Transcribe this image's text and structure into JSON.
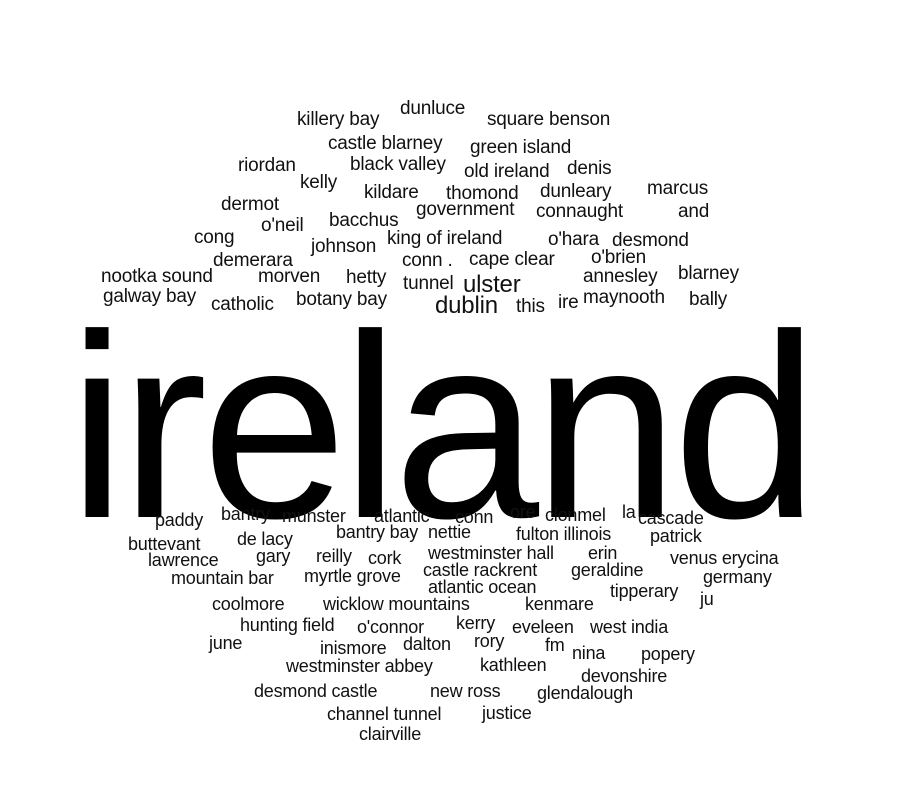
{
  "main_word": "ireland",
  "text_color": "#111111",
  "background": "#ffffff",
  "words": [
    "dunluce",
    "killery bay",
    "square benson",
    "castle blarney",
    "green island",
    "riordan",
    "black valley",
    "old ireland",
    "denis",
    "kelly",
    "kildare",
    "thomond",
    "dunleary",
    "marcus",
    "dermot",
    "government",
    "connaught",
    "and",
    "o'neil",
    "bacchus",
    "cong",
    "johnson",
    "king of ireland",
    "o'hara",
    "desmond",
    "demerara",
    "conn .",
    "cape clear",
    "o'brien",
    "nootka sound",
    "morven",
    "hetty",
    "tunnel",
    "ulster",
    "annesley",
    "blarney",
    "galway bay",
    "catholic",
    "botany bay",
    "dublin",
    "this",
    "ire",
    "maynooth",
    "bally",
    "bantry",
    "munster",
    "atlantic",
    "conn",
    "ore",
    "clonmel",
    "la",
    "cascade",
    "paddy",
    "bantry bay",
    "nettie",
    "fulton illinois",
    "patrick",
    "buttevant",
    "de lacy",
    "westminster hall",
    "erin",
    "lawrence",
    "gary",
    "reilly",
    "cork",
    "venus erycina",
    "castle rackrent",
    "geraldine",
    "mountain bar",
    "myrtle grove",
    "atlantic ocean",
    "germany",
    "tipperary",
    "ju",
    "coolmore",
    "wicklow mountains",
    "kenmare",
    "hunting field",
    "o'connor",
    "kerry",
    "eveleen",
    "west india",
    "june",
    "inismore",
    "dalton",
    "rory",
    "fm",
    "nina",
    "popery",
    "westminster abbey",
    "kathleen",
    "devonshire",
    "desmond castle",
    "new ross",
    "glendalough",
    "channel tunnel",
    "justice",
    "clairville"
  ]
}
